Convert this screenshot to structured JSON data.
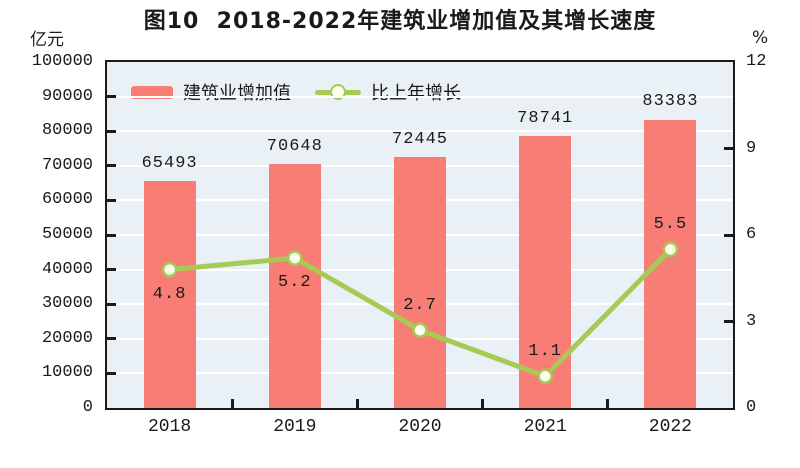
{
  "title": "图10  2018-2022年建筑业增加值及其增长速度",
  "left_axis": {
    "unit": "亿元",
    "ticks": [
      0,
      10000,
      20000,
      30000,
      40000,
      50000,
      60000,
      70000,
      80000,
      90000,
      100000
    ],
    "lim": [
      0,
      100000
    ]
  },
  "right_axis": {
    "unit": "%",
    "ticks": [
      0,
      3,
      6,
      9,
      12
    ],
    "lim": [
      0,
      12
    ]
  },
  "legend": [
    {
      "label": "建筑业增加值",
      "type": "bar"
    },
    {
      "label": "比上年增长",
      "type": "line"
    }
  ],
  "colors": {
    "bar": "#F87D75",
    "line": "#A5CB55",
    "marker_fill": "#FDFDF0",
    "plot_bg": "#E9F1F6",
    "gridline": "#FFFFFF",
    "axis": "#1a1a1a",
    "text": "#1a1a1a"
  },
  "chart_data": {
    "type": "bar+line",
    "title": "图10 2018-2022年建筑业增加值及其增长速度",
    "categories": [
      "2018",
      "2019",
      "2020",
      "2021",
      "2022"
    ],
    "series": [
      {
        "name": "建筑业增加值",
        "type": "bar",
        "axis": "left",
        "unit": "亿元",
        "values": [
          65493,
          70648,
          72445,
          78741,
          83383
        ]
      },
      {
        "name": "比上年增长",
        "type": "line",
        "axis": "right",
        "unit": "%",
        "values": [
          4.8,
          5.2,
          2.7,
          1.1,
          5.5
        ],
        "label_side": [
          "below",
          "below",
          "above",
          "above",
          "above"
        ]
      }
    ],
    "left_ylim": [
      0,
      100000
    ],
    "right_ylim": [
      0,
      12
    ],
    "grid": "horizontal-white",
    "legend_position": "top-left-inside"
  }
}
